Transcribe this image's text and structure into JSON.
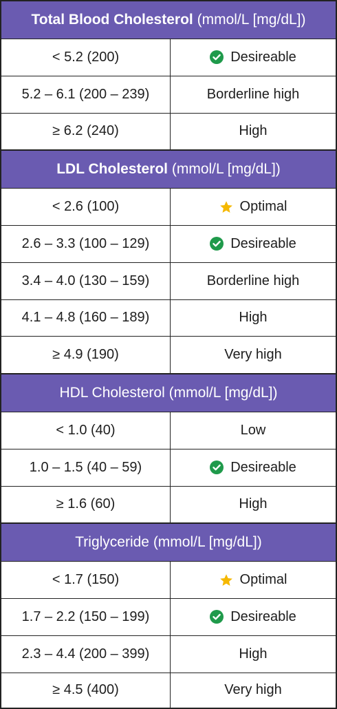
{
  "sections": [
    {
      "title_bold": "Total Blood Cholesterol",
      "title_rest": " (mmol/L [mg/dL])",
      "rows": [
        {
          "range": "< 5.2 (200)",
          "status": "Desireable",
          "icon": "check-circle-icon"
        },
        {
          "range": "5.2 – 6.1 (200 – 239)",
          "status": "Borderline high",
          "icon": ""
        },
        {
          "range": "≥ 6.2 (240)",
          "status": "High",
          "icon": ""
        }
      ]
    },
    {
      "title_bold": "LDL Cholesterol",
      "title_rest": " (mmol/L [mg/dL])",
      "rows": [
        {
          "range": "< 2.6 (100)",
          "status": "Optimal",
          "icon": "star-icon"
        },
        {
          "range": "2.6 – 3.3 (100 – 129)",
          "status": "Desireable",
          "icon": "check-circle-icon"
        },
        {
          "range": "3.4 – 4.0 (130 – 159)",
          "status": "Borderline high",
          "icon": ""
        },
        {
          "range": "4.1 – 4.8 (160 – 189)",
          "status": "High",
          "icon": ""
        },
        {
          "range": "≥ 4.9 (190)",
          "status": "Very high",
          "icon": ""
        }
      ]
    },
    {
      "title_bold": "",
      "title_rest": "HDL Cholesterol (mmol/L [mg/dL])",
      "rows": [
        {
          "range": "< 1.0 (40)",
          "status": "Low",
          "icon": ""
        },
        {
          "range": "1.0 – 1.5 (40 – 59)",
          "status": "Desireable",
          "icon": "check-circle-icon"
        },
        {
          "range": "≥ 1.6 (60)",
          "status": "High",
          "icon": ""
        }
      ]
    },
    {
      "title_bold": "",
      "title_rest": "Triglyceride (mmol/L [mg/dL])",
      "rows": [
        {
          "range": "< 1.7 (150)",
          "status": "Optimal",
          "icon": "star-icon"
        },
        {
          "range": "1.7 – 2.2 (150 – 199)",
          "status": "Desireable",
          "icon": "check-circle-icon"
        },
        {
          "range": "2.3 – 4.4 (200 – 399)",
          "status": "High",
          "icon": ""
        },
        {
          "range": "≥ 4.5 (400)",
          "status": "Very high",
          "icon": ""
        }
      ]
    }
  ],
  "colors": {
    "header_bg": "#6a5bb1",
    "check": "#1f9a4b",
    "star": "#f5b800"
  }
}
